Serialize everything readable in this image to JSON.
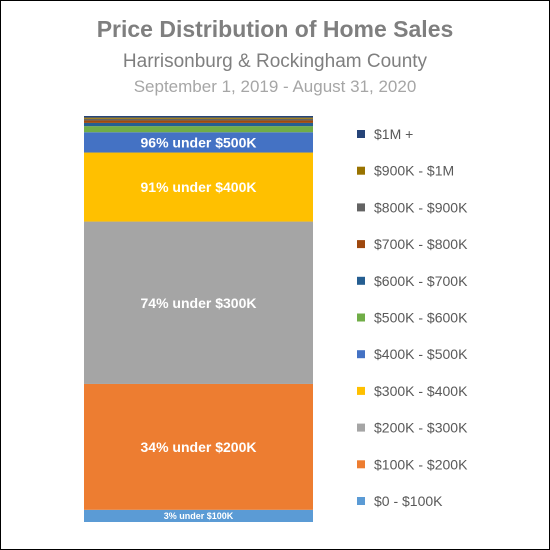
{
  "title": "Price Distribution of Home Sales",
  "subtitle": "Harrisonburg & Rockingham County",
  "date_range": "September 1, 2019 - August 31, 2020",
  "chart_data": {
    "type": "bar",
    "stacked": true,
    "categories": [
      ""
    ],
    "ylim": [
      0,
      100
    ],
    "legend_position": "right",
    "series": [
      {
        "name": "$0 - $100K",
        "values": [
          3
        ],
        "color": "#5b9bd5",
        "label": "3% under $100K"
      },
      {
        "name": "$100K - $200K",
        "values": [
          31
        ],
        "color": "#ed7d31",
        "label": "34% under $200K"
      },
      {
        "name": "$200K - $300K",
        "values": [
          40
        ],
        "color": "#a5a5a5",
        "label": "74% under $300K"
      },
      {
        "name": "$300K - $400K",
        "values": [
          17
        ],
        "color": "#ffc000",
        "label": "91% under $400K"
      },
      {
        "name": "$400K - $500K",
        "values": [
          5
        ],
        "color": "#4472c4",
        "label": "96% under $500K"
      },
      {
        "name": "$500K - $600K",
        "values": [
          1.5
        ],
        "color": "#70ad47",
        "label": ""
      },
      {
        "name": "$600K - $700K",
        "values": [
          0.8
        ],
        "color": "#255e91",
        "label": ""
      },
      {
        "name": "$700K - $800K",
        "values": [
          0.6
        ],
        "color": "#9e480e",
        "label": ""
      },
      {
        "name": "$800K - $900K",
        "values": [
          0.4
        ],
        "color": "#636363",
        "label": ""
      },
      {
        "name": "$900K - $1M",
        "values": [
          0.3
        ],
        "color": "#997300",
        "label": ""
      },
      {
        "name": "$1M +",
        "values": [
          0.4
        ],
        "color": "#264478",
        "label": ""
      }
    ]
  }
}
